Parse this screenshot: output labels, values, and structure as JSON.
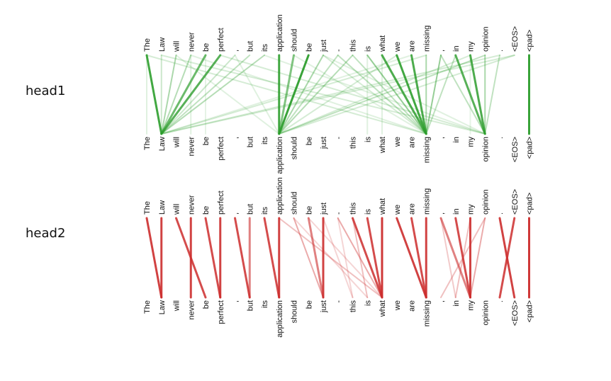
{
  "tokens": [
    "The",
    "Law",
    "will",
    "never",
    "be",
    "perfect",
    ",",
    "but",
    "its",
    "application",
    "should",
    "be",
    "just",
    "-",
    "this",
    "is",
    "what",
    "we",
    "are",
    "missing",
    ",",
    "in",
    "my",
    "opinion",
    ".",
    "<EOS>",
    "<pad>"
  ],
  "heads": [
    {
      "label": "head1",
      "color": "#2e9e2e",
      "edges": [
        [
          0,
          1,
          0.9
        ],
        [
          2,
          1,
          0.4
        ],
        [
          3,
          1,
          0.35
        ],
        [
          4,
          1,
          0.7
        ],
        [
          5,
          1,
          0.8
        ],
        [
          6,
          1,
          0.25
        ],
        [
          7,
          1,
          0.3
        ],
        [
          8,
          1,
          0.35
        ],
        [
          9,
          9,
          0.9
        ],
        [
          10,
          9,
          0.6
        ],
        [
          11,
          9,
          0.95
        ],
        [
          12,
          9,
          0.4
        ],
        [
          13,
          9,
          0.3
        ],
        [
          14,
          9,
          0.35
        ],
        [
          15,
          19,
          0.5
        ],
        [
          16,
          19,
          0.85
        ],
        [
          17,
          19,
          0.9
        ],
        [
          18,
          19,
          0.85
        ],
        [
          19,
          19,
          0.4
        ],
        [
          13,
          19,
          0.3
        ],
        [
          14,
          19,
          0.3
        ],
        [
          20,
          23,
          0.3
        ],
        [
          21,
          23,
          0.8
        ],
        [
          22,
          23,
          0.85
        ],
        [
          23,
          23,
          0.4
        ],
        [
          24,
          23,
          0.3
        ],
        [
          20,
          19,
          0.5
        ],
        [
          21,
          19,
          0.3
        ],
        [
          25,
          1,
          0.2
        ],
        [
          25,
          9,
          0.2
        ],
        [
          23,
          9,
          0.3
        ],
        [
          22,
          9,
          0.2
        ],
        [
          24,
          1,
          0.2
        ],
        [
          1,
          23,
          0.2
        ],
        [
          0,
          19,
          0.2
        ],
        [
          3,
          19,
          0.15
        ],
        [
          5,
          23,
          0.2
        ],
        [
          2,
          9,
          0.15
        ],
        [
          8,
          23,
          0.15
        ],
        [
          10,
          19,
          0.15
        ],
        [
          12,
          23,
          0.15
        ],
        [
          6,
          9,
          0.15
        ],
        [
          17,
          9,
          0.2
        ],
        [
          18,
          1,
          0.15
        ],
        [
          19,
          1,
          0.2
        ],
        [
          12,
          19,
          0.2
        ],
        [
          26,
          26,
          0.95
        ],
        [
          1,
          1,
          0.25
        ],
        [
          0,
          0,
          0.15
        ],
        [
          3,
          3,
          0.15
        ],
        [
          4,
          4,
          0.12
        ],
        [
          15,
          15,
          0.15
        ],
        [
          16,
          16,
          0.15
        ],
        [
          22,
          22,
          0.12
        ]
      ]
    },
    {
      "label": "head2",
      "color": "#cc2d2d",
      "edges": [
        [
          0,
          1,
          0.9
        ],
        [
          1,
          1,
          0.9
        ],
        [
          2,
          4,
          0.85
        ],
        [
          3,
          3,
          0.9
        ],
        [
          4,
          5,
          0.85
        ],
        [
          5,
          5,
          0.9
        ],
        [
          6,
          7,
          0.85
        ],
        [
          7,
          7,
          0.6
        ],
        [
          8,
          9,
          0.85
        ],
        [
          9,
          9,
          0.9
        ],
        [
          10,
          12,
          0.4
        ],
        [
          11,
          12,
          0.6
        ],
        [
          12,
          12,
          0.9
        ],
        [
          13,
          16,
          0.4
        ],
        [
          14,
          15,
          0.3
        ],
        [
          15,
          16,
          0.85
        ],
        [
          16,
          16,
          0.95
        ],
        [
          14,
          16,
          0.85
        ],
        [
          17,
          19,
          0.9
        ],
        [
          18,
          19,
          0.85
        ],
        [
          19,
          19,
          0.9
        ],
        [
          20,
          22,
          0.6
        ],
        [
          21,
          22,
          0.85
        ],
        [
          22,
          22,
          0.9
        ],
        [
          23,
          22,
          0.4
        ],
        [
          23,
          20,
          0.3
        ],
        [
          24,
          25,
          0.9
        ],
        [
          25,
          24,
          0.85
        ],
        [
          26,
          26,
          0.95
        ],
        [
          9,
          16,
          0.3
        ],
        [
          11,
          16,
          0.2
        ],
        [
          10,
          15,
          0.2
        ],
        [
          13,
          14,
          0.2
        ],
        [
          20,
          21,
          0.25
        ],
        [
          22,
          21,
          0.3
        ],
        [
          12,
          14,
          0.2
        ]
      ]
    }
  ]
}
